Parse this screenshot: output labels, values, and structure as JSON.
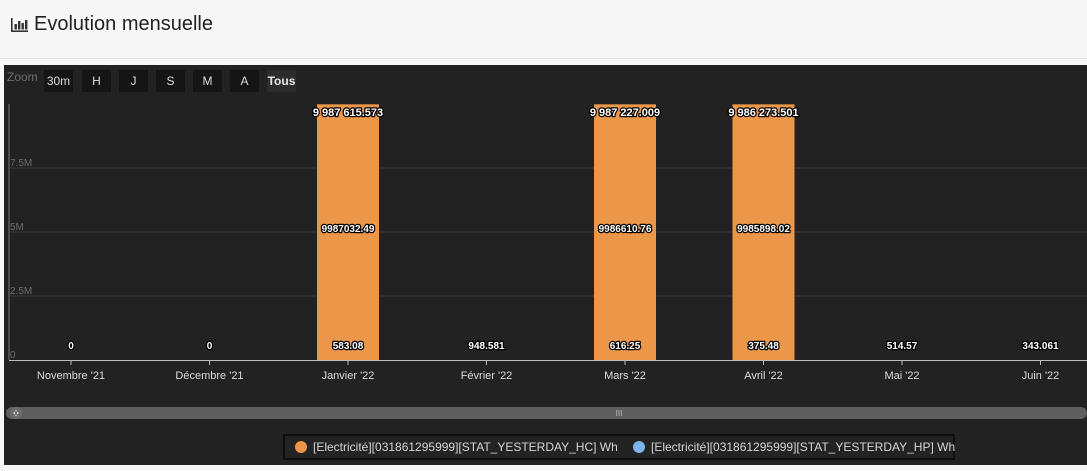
{
  "page": {
    "title": "Evolution mensuelle"
  },
  "zoom": {
    "label": "Zoom",
    "buttons": [
      "30m",
      "H",
      "J",
      "S",
      "M",
      "A",
      "Tous"
    ],
    "selected": "Tous"
  },
  "scrollbar": {
    "handle_glyph": "III"
  },
  "colors": {
    "accent": "#ec9649",
    "secondary": "#7cb5ec",
    "panel_bg": "#222222"
  },
  "chart_data": {
    "type": "bar",
    "stacked": true,
    "categories": [
      "Novembre '21",
      "Décembre '21",
      "Janvier '22",
      "Février '22",
      "Mars '22",
      "Avril '22",
      "Mai '22",
      "Juin '22"
    ],
    "series": [
      {
        "name": "[Electricité][031861295999][STAT_YESTERDAY_HC] Wh",
        "color": "#ec9649",
        "values": [
          0,
          0,
          9987032.49,
          948.581,
          9986610.76,
          9985898.02,
          514.57,
          343.061
        ]
      },
      {
        "name": "[Electricité][031861295999][STAT_YESTERDAY_HP] Wh",
        "color": "#7cb5ec",
        "values": [
          0,
          0,
          583.08,
          0,
          616.25,
          375.48,
          0,
          0
        ]
      }
    ],
    "data_labels": {
      "bottom": [
        "0",
        "0",
        "583.08",
        "948.581",
        "616.25",
        "375.48",
        "514.57",
        "343.061"
      ],
      "middle": [
        "",
        "",
        "9987032.49",
        "",
        "9986610.76",
        "9985898.02",
        "",
        ""
      ],
      "top": [
        "",
        "",
        "9 987 615.573",
        "",
        "9 987 227.009",
        "9 986 273.501",
        "",
        ""
      ]
    },
    "yticks": [
      "0",
      "2.5M",
      "5M",
      "7.5M"
    ],
    "ytick_values": [
      0,
      2500000,
      5000000,
      7500000
    ],
    "ylim": [
      0,
      10000000
    ],
    "grid": true,
    "legend_position": "bottom"
  }
}
